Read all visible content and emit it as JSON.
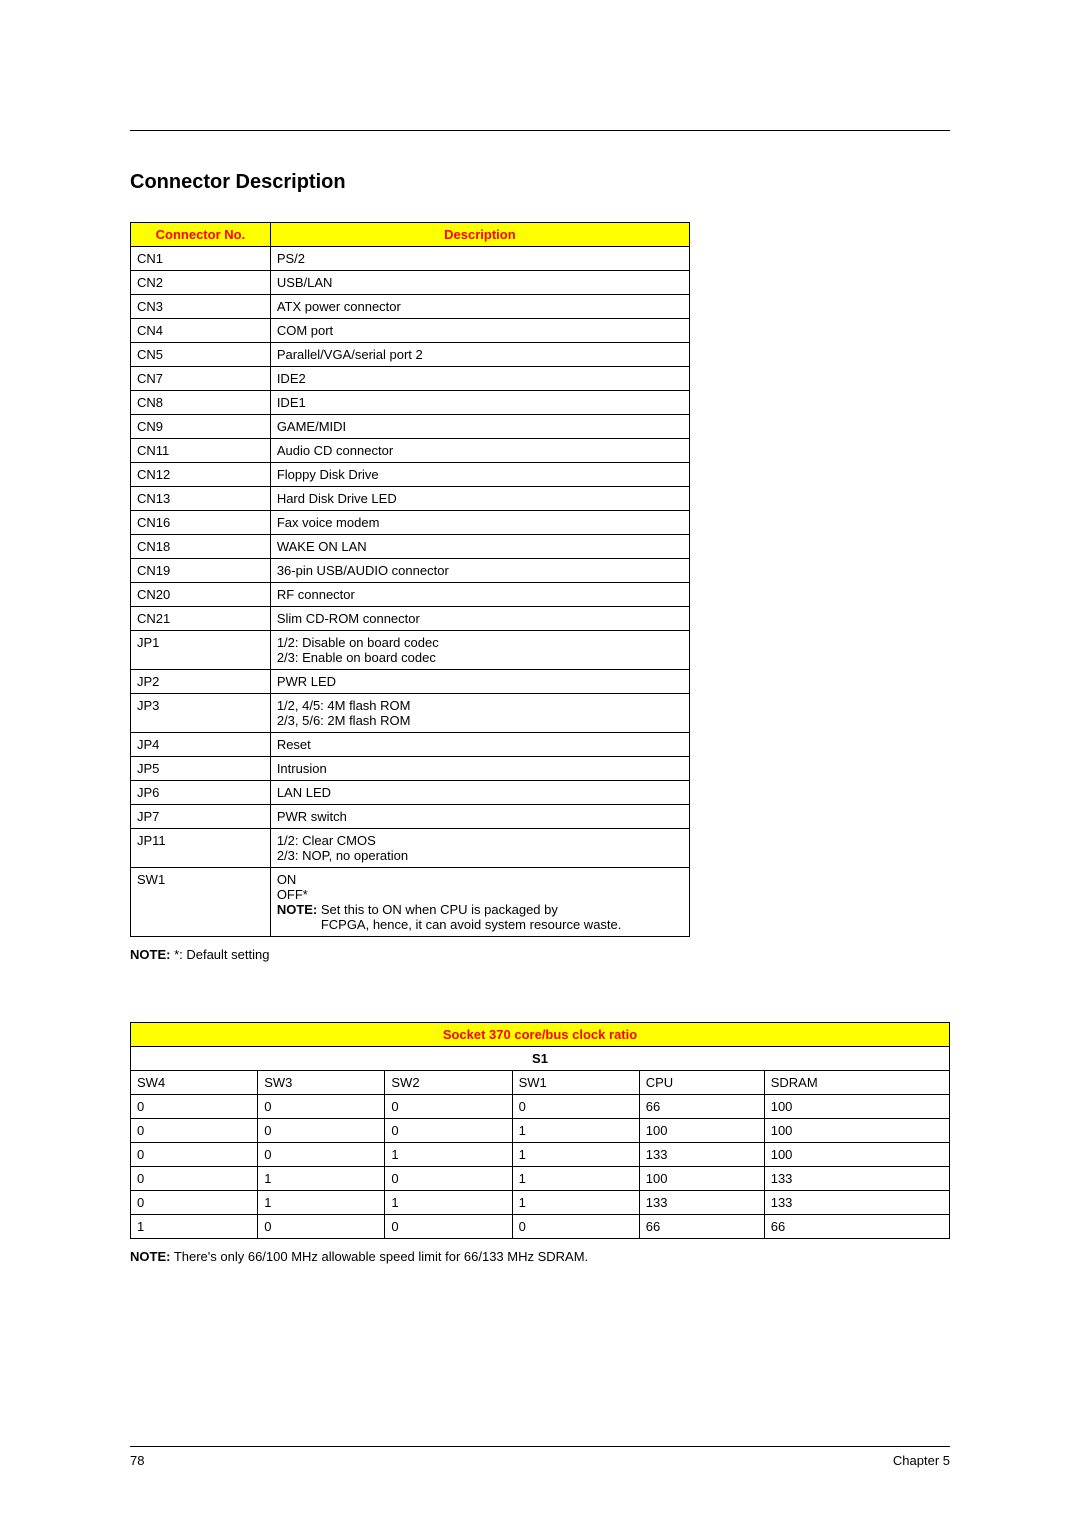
{
  "section_title": "Connector Description",
  "connector_table": {
    "headers": {
      "col1": "Connector No.",
      "col2": "Description"
    },
    "rows": [
      {
        "no": "CN1",
        "desc": "PS/2"
      },
      {
        "no": "CN2",
        "desc": "USB/LAN"
      },
      {
        "no": "CN3",
        "desc": "ATX power connector"
      },
      {
        "no": "CN4",
        "desc": "COM port"
      },
      {
        "no": "CN5",
        "desc": "Parallel/VGA/serial port 2"
      },
      {
        "no": "CN7",
        "desc": "IDE2"
      },
      {
        "no": "CN8",
        "desc": "IDE1"
      },
      {
        "no": "CN9",
        "desc": "GAME/MIDI"
      },
      {
        "no": "CN11",
        "desc": "Audio CD connector"
      },
      {
        "no": "CN12",
        "desc": "Floppy Disk Drive"
      },
      {
        "no": "CN13",
        "desc": "Hard Disk Drive LED"
      },
      {
        "no": "CN16",
        "desc": "Fax voice modem"
      },
      {
        "no": "CN18",
        "desc": "WAKE ON LAN"
      },
      {
        "no": "CN19",
        "desc": "36-pin USB/AUDIO connector"
      },
      {
        "no": "CN20",
        "desc": "RF connector"
      },
      {
        "no": "CN21",
        "desc": "Slim CD-ROM connector"
      },
      {
        "no": "JP1",
        "desc": "1/2:  Disable on board codec\n2/3:  Enable on board codec"
      },
      {
        "no": "JP2",
        "desc": "PWR LED"
      },
      {
        "no": "JP3",
        "desc": "1/2, 4/5:  4M flash ROM\n2/3, 5/6:  2M flash ROM"
      },
      {
        "no": "JP4",
        "desc": "Reset"
      },
      {
        "no": "JP5",
        "desc": "Intrusion"
      },
      {
        "no": "JP6",
        "desc": "LAN LED"
      },
      {
        "no": "JP7",
        "desc": "PWR switch"
      },
      {
        "no": "JP11",
        "desc": "1/2:  Clear CMOS\n2/3:  NOP, no operation"
      }
    ],
    "sw1": {
      "no": "SW1",
      "on": "ON",
      "off": "OFF*",
      "note_label": "NOTE:",
      "note_text1": " Set this to ON when CPU is packaged by",
      "note_text2": "FCPGA, hence, it can avoid system resource waste."
    }
  },
  "note_default": {
    "label": "NOTE: ",
    "text": " *: Default setting"
  },
  "ratio_table": {
    "title": "Socket 370 core/bus clock ratio",
    "s1": "S1",
    "headers": [
      "SW4",
      "SW3",
      "SW2",
      "SW1",
      "CPU",
      "SDRAM"
    ],
    "rows": [
      [
        "0",
        "0",
        "0",
        "0",
        "66",
        "100"
      ],
      [
        "0",
        "0",
        "0",
        "1",
        "100",
        "100"
      ],
      [
        "0",
        "0",
        "1",
        "1",
        "133",
        "100"
      ],
      [
        "0",
        "1",
        "0",
        "1",
        "100",
        "133"
      ],
      [
        "0",
        "1",
        "1",
        "1",
        "133",
        "133"
      ],
      [
        "1",
        "0",
        "0",
        "0",
        "66",
        "66"
      ]
    ]
  },
  "note_speed": {
    "label": "NOTE:",
    "text": " There's only 66/100 MHz allowable speed limit for  66/133 MHz SDRAM."
  },
  "footer": {
    "page": "78",
    "chapter": "Chapter 5"
  }
}
